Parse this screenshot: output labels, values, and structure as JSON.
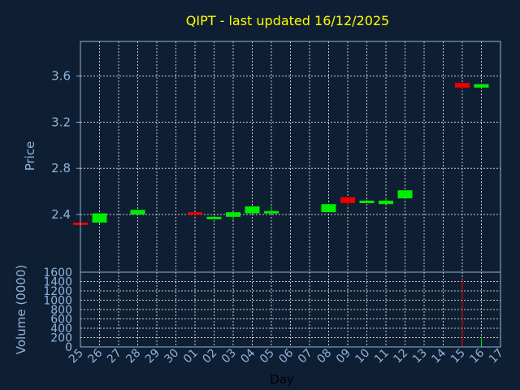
{
  "chart_data": [
    {
      "type": "candlestick",
      "title": "QIPT - last updated 16/12/2025",
      "ylabel": "Price",
      "ylim": [
        1.9,
        3.9
      ],
      "yticks": [
        2.4,
        2.8,
        3.2,
        3.6
      ],
      "ytick_labels": [
        "2.4",
        "2.8",
        "3.2",
        "3.6"
      ],
      "grid": true,
      "up_color": "#00ee00",
      "down_color": "#ee0000",
      "candles": [
        {
          "day": "25",
          "open": 2.33,
          "high": 2.33,
          "low": 2.32,
          "close": 2.32
        },
        {
          "day": "26",
          "open": 2.33,
          "high": 2.41,
          "low": 2.32,
          "close": 2.41
        },
        {
          "day": "28",
          "open": 2.4,
          "high": 2.44,
          "low": 2.4,
          "close": 2.44
        },
        {
          "day": "01",
          "open": 2.42,
          "high": 2.42,
          "low": 2.38,
          "close": 2.4
        },
        {
          "day": "02",
          "open": 2.37,
          "high": 2.39,
          "low": 2.37,
          "close": 2.38
        },
        {
          "day": "03",
          "open": 2.38,
          "high": 2.42,
          "low": 2.35,
          "close": 2.42
        },
        {
          "day": "04",
          "open": 2.41,
          "high": 2.47,
          "low": 2.4,
          "close": 2.47
        },
        {
          "day": "05",
          "open": 2.41,
          "high": 2.47,
          "low": 2.41,
          "close": 2.43
        },
        {
          "day": "08",
          "open": 2.42,
          "high": 2.49,
          "low": 2.42,
          "close": 2.49
        },
        {
          "day": "09",
          "open": 2.55,
          "high": 2.55,
          "low": 2.47,
          "close": 2.5
        },
        {
          "day": "10",
          "open": 2.51,
          "high": 2.53,
          "low": 2.51,
          "close": 2.52
        },
        {
          "day": "11",
          "open": 2.49,
          "high": 2.55,
          "low": 2.49,
          "close": 2.52
        },
        {
          "day": "12",
          "open": 2.54,
          "high": 2.61,
          "low": 2.54,
          "close": 2.61
        },
        {
          "day": "15",
          "open": 3.54,
          "high": 3.54,
          "low": 3.47,
          "close": 3.5
        },
        {
          "day": "16",
          "open": 3.5,
          "high": 3.53,
          "low": 3.5,
          "close": 3.53
        }
      ]
    },
    {
      "type": "bar",
      "ylabel": "Volume (0000)",
      "xlabel": "Day",
      "ylim": [
        0,
        1600
      ],
      "yticks": [
        0,
        200,
        400,
        600,
        800,
        1000,
        1200,
        1400,
        1600
      ],
      "ytick_labels": [
        "0",
        "200",
        "400",
        "600",
        "800",
        "1000",
        "1200",
        "1400",
        "1600"
      ],
      "grid": true,
      "series": [
        {
          "day": "15",
          "value": 1450,
          "color": "#ee0000"
        },
        {
          "day": "16",
          "value": 220,
          "color": "#00ee00"
        }
      ]
    }
  ],
  "x_axis": {
    "tick_labels": [
      "25",
      "26",
      "27",
      "28",
      "29",
      "30",
      "01",
      "02",
      "03",
      "04",
      "05",
      "06",
      "07",
      "08",
      "09",
      "10",
      "11",
      "12",
      "13",
      "14",
      "15",
      "16",
      "17"
    ]
  }
}
